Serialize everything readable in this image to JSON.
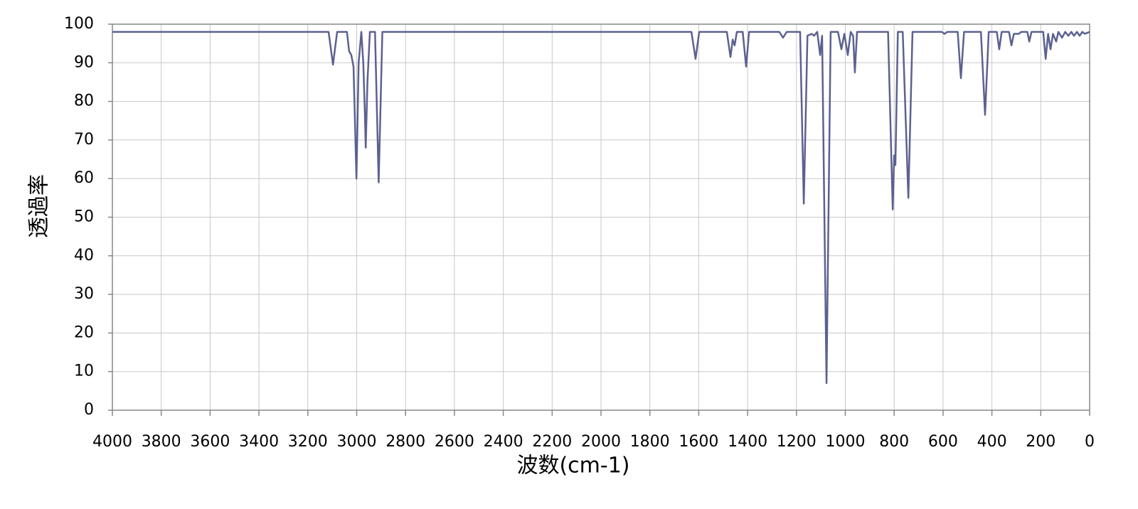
{
  "chart_data": {
    "type": "line",
    "x_label": "波数(cm-1)",
    "y_label": "透過率",
    "x": [
      4000,
      3115,
      3097,
      3080,
      3040,
      3031,
      3022,
      3013,
      3001,
      2992,
      2981,
      2973,
      2967,
      2963,
      2956,
      2946,
      2925,
      2910,
      2895,
      1630,
      1613,
      1598,
      1485,
      1470,
      1461,
      1453,
      1444,
      1420,
      1406,
      1394,
      1270,
      1255,
      1240,
      1185,
      1170,
      1155,
      1138,
      1128,
      1115,
      1103,
      1095,
      1077,
      1060,
      1030,
      1016,
      1004,
      990,
      978,
      968,
      961,
      952,
      825,
      806,
      800,
      795,
      785,
      765,
      742,
      725,
      605,
      594,
      583,
      540,
      527,
      514,
      445,
      428,
      413,
      380,
      370,
      360,
      330,
      320,
      310,
      290,
      280,
      255,
      247,
      238,
      190,
      180,
      170,
      160,
      150,
      137,
      128,
      113,
      100,
      87,
      75,
      64,
      52,
      41,
      30,
      20,
      0
    ],
    "values": [
      98,
      98,
      89.5,
      98,
      98,
      93,
      92,
      89,
      60,
      90,
      98,
      90,
      78,
      68,
      85,
      98,
      98,
      59,
      98,
      98,
      91,
      98,
      98,
      91.5,
      96,
      94.5,
      98,
      98,
      89,
      98,
      98,
      96.5,
      98,
      98,
      53.5,
      97,
      97.5,
      97,
      98,
      92,
      97,
      7,
      98,
      98,
      93.5,
      97.5,
      92,
      98,
      97,
      87.5,
      98,
      98,
      52,
      66,
      63.5,
      98,
      98,
      55,
      98,
      98,
      97.5,
      98,
      98,
      86,
      98,
      98,
      76.5,
      98,
      98,
      93.5,
      98,
      98,
      94.5,
      97.5,
      97.5,
      98,
      98,
      95.5,
      98,
      98,
      91,
      97.5,
      93.5,
      97.5,
      95.5,
      98,
      96.5,
      98,
      97,
      98,
      97,
      98,
      97,
      98,
      97.5,
      98
    ],
    "color": "#5b6190",
    "xlim": [
      4000,
      0
    ],
    "xticks": [
      4000,
      3800,
      3600,
      3400,
      3200,
      3000,
      2800,
      2600,
      2400,
      2200,
      2000,
      1800,
      1600,
      1400,
      1200,
      1000,
      800,
      600,
      400,
      200,
      0
    ],
    "ylim": [
      0,
      100
    ],
    "yticks": [
      0,
      10,
      20,
      30,
      40,
      50,
      60,
      70,
      80,
      90,
      100
    ],
    "grid": true
  }
}
